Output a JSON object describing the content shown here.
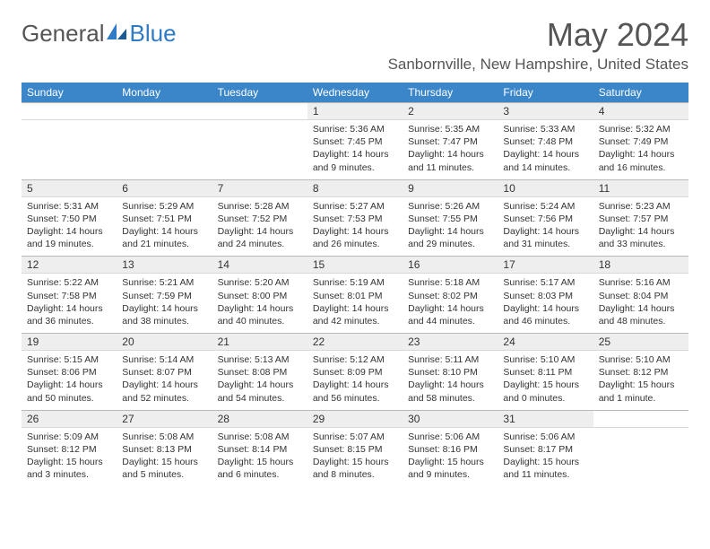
{
  "logo": {
    "general": "General",
    "blue": "Blue"
  },
  "title": "May 2024",
  "location": "Sanbornville, New Hampshire, United States",
  "colors": {
    "header_bg": "#3a86c8",
    "header_text": "#ffffff",
    "daynum_bg": "#eeeeee",
    "border": "#b8b8b8",
    "body_text": "#333333",
    "logo_blue": "#2f7bc4",
    "logo_gray": "#555555"
  },
  "weekdays": [
    "Sunday",
    "Monday",
    "Tuesday",
    "Wednesday",
    "Thursday",
    "Friday",
    "Saturday"
  ],
  "weeks": [
    {
      "nums": [
        "",
        "",
        "",
        "1",
        "2",
        "3",
        "4"
      ],
      "cells": [
        null,
        null,
        null,
        {
          "sunrise": "Sunrise: 5:36 AM",
          "sunset": "Sunset: 7:45 PM",
          "day1": "Daylight: 14 hours",
          "day2": "and 9 minutes."
        },
        {
          "sunrise": "Sunrise: 5:35 AM",
          "sunset": "Sunset: 7:47 PM",
          "day1": "Daylight: 14 hours",
          "day2": "and 11 minutes."
        },
        {
          "sunrise": "Sunrise: 5:33 AM",
          "sunset": "Sunset: 7:48 PM",
          "day1": "Daylight: 14 hours",
          "day2": "and 14 minutes."
        },
        {
          "sunrise": "Sunrise: 5:32 AM",
          "sunset": "Sunset: 7:49 PM",
          "day1": "Daylight: 14 hours",
          "day2": "and 16 minutes."
        }
      ]
    },
    {
      "nums": [
        "5",
        "6",
        "7",
        "8",
        "9",
        "10",
        "11"
      ],
      "cells": [
        {
          "sunrise": "Sunrise: 5:31 AM",
          "sunset": "Sunset: 7:50 PM",
          "day1": "Daylight: 14 hours",
          "day2": "and 19 minutes."
        },
        {
          "sunrise": "Sunrise: 5:29 AM",
          "sunset": "Sunset: 7:51 PM",
          "day1": "Daylight: 14 hours",
          "day2": "and 21 minutes."
        },
        {
          "sunrise": "Sunrise: 5:28 AM",
          "sunset": "Sunset: 7:52 PM",
          "day1": "Daylight: 14 hours",
          "day2": "and 24 minutes."
        },
        {
          "sunrise": "Sunrise: 5:27 AM",
          "sunset": "Sunset: 7:53 PM",
          "day1": "Daylight: 14 hours",
          "day2": "and 26 minutes."
        },
        {
          "sunrise": "Sunrise: 5:26 AM",
          "sunset": "Sunset: 7:55 PM",
          "day1": "Daylight: 14 hours",
          "day2": "and 29 minutes."
        },
        {
          "sunrise": "Sunrise: 5:24 AM",
          "sunset": "Sunset: 7:56 PM",
          "day1": "Daylight: 14 hours",
          "day2": "and 31 minutes."
        },
        {
          "sunrise": "Sunrise: 5:23 AM",
          "sunset": "Sunset: 7:57 PM",
          "day1": "Daylight: 14 hours",
          "day2": "and 33 minutes."
        }
      ]
    },
    {
      "nums": [
        "12",
        "13",
        "14",
        "15",
        "16",
        "17",
        "18"
      ],
      "cells": [
        {
          "sunrise": "Sunrise: 5:22 AM",
          "sunset": "Sunset: 7:58 PM",
          "day1": "Daylight: 14 hours",
          "day2": "and 36 minutes."
        },
        {
          "sunrise": "Sunrise: 5:21 AM",
          "sunset": "Sunset: 7:59 PM",
          "day1": "Daylight: 14 hours",
          "day2": "and 38 minutes."
        },
        {
          "sunrise": "Sunrise: 5:20 AM",
          "sunset": "Sunset: 8:00 PM",
          "day1": "Daylight: 14 hours",
          "day2": "and 40 minutes."
        },
        {
          "sunrise": "Sunrise: 5:19 AM",
          "sunset": "Sunset: 8:01 PM",
          "day1": "Daylight: 14 hours",
          "day2": "and 42 minutes."
        },
        {
          "sunrise": "Sunrise: 5:18 AM",
          "sunset": "Sunset: 8:02 PM",
          "day1": "Daylight: 14 hours",
          "day2": "and 44 minutes."
        },
        {
          "sunrise": "Sunrise: 5:17 AM",
          "sunset": "Sunset: 8:03 PM",
          "day1": "Daylight: 14 hours",
          "day2": "and 46 minutes."
        },
        {
          "sunrise": "Sunrise: 5:16 AM",
          "sunset": "Sunset: 8:04 PM",
          "day1": "Daylight: 14 hours",
          "day2": "and 48 minutes."
        }
      ]
    },
    {
      "nums": [
        "19",
        "20",
        "21",
        "22",
        "23",
        "24",
        "25"
      ],
      "cells": [
        {
          "sunrise": "Sunrise: 5:15 AM",
          "sunset": "Sunset: 8:06 PM",
          "day1": "Daylight: 14 hours",
          "day2": "and 50 minutes."
        },
        {
          "sunrise": "Sunrise: 5:14 AM",
          "sunset": "Sunset: 8:07 PM",
          "day1": "Daylight: 14 hours",
          "day2": "and 52 minutes."
        },
        {
          "sunrise": "Sunrise: 5:13 AM",
          "sunset": "Sunset: 8:08 PM",
          "day1": "Daylight: 14 hours",
          "day2": "and 54 minutes."
        },
        {
          "sunrise": "Sunrise: 5:12 AM",
          "sunset": "Sunset: 8:09 PM",
          "day1": "Daylight: 14 hours",
          "day2": "and 56 minutes."
        },
        {
          "sunrise": "Sunrise: 5:11 AM",
          "sunset": "Sunset: 8:10 PM",
          "day1": "Daylight: 14 hours",
          "day2": "and 58 minutes."
        },
        {
          "sunrise": "Sunrise: 5:10 AM",
          "sunset": "Sunset: 8:11 PM",
          "day1": "Daylight: 15 hours",
          "day2": "and 0 minutes."
        },
        {
          "sunrise": "Sunrise: 5:10 AM",
          "sunset": "Sunset: 8:12 PM",
          "day1": "Daylight: 15 hours",
          "day2": "and 1 minute."
        }
      ]
    },
    {
      "nums": [
        "26",
        "27",
        "28",
        "29",
        "30",
        "31",
        ""
      ],
      "cells": [
        {
          "sunrise": "Sunrise: 5:09 AM",
          "sunset": "Sunset: 8:12 PM",
          "day1": "Daylight: 15 hours",
          "day2": "and 3 minutes."
        },
        {
          "sunrise": "Sunrise: 5:08 AM",
          "sunset": "Sunset: 8:13 PM",
          "day1": "Daylight: 15 hours",
          "day2": "and 5 minutes."
        },
        {
          "sunrise": "Sunrise: 5:08 AM",
          "sunset": "Sunset: 8:14 PM",
          "day1": "Daylight: 15 hours",
          "day2": "and 6 minutes."
        },
        {
          "sunrise": "Sunrise: 5:07 AM",
          "sunset": "Sunset: 8:15 PM",
          "day1": "Daylight: 15 hours",
          "day2": "and 8 minutes."
        },
        {
          "sunrise": "Sunrise: 5:06 AM",
          "sunset": "Sunset: 8:16 PM",
          "day1": "Daylight: 15 hours",
          "day2": "and 9 minutes."
        },
        {
          "sunrise": "Sunrise: 5:06 AM",
          "sunset": "Sunset: 8:17 PM",
          "day1": "Daylight: 15 hours",
          "day2": "and 11 minutes."
        },
        null
      ]
    }
  ]
}
